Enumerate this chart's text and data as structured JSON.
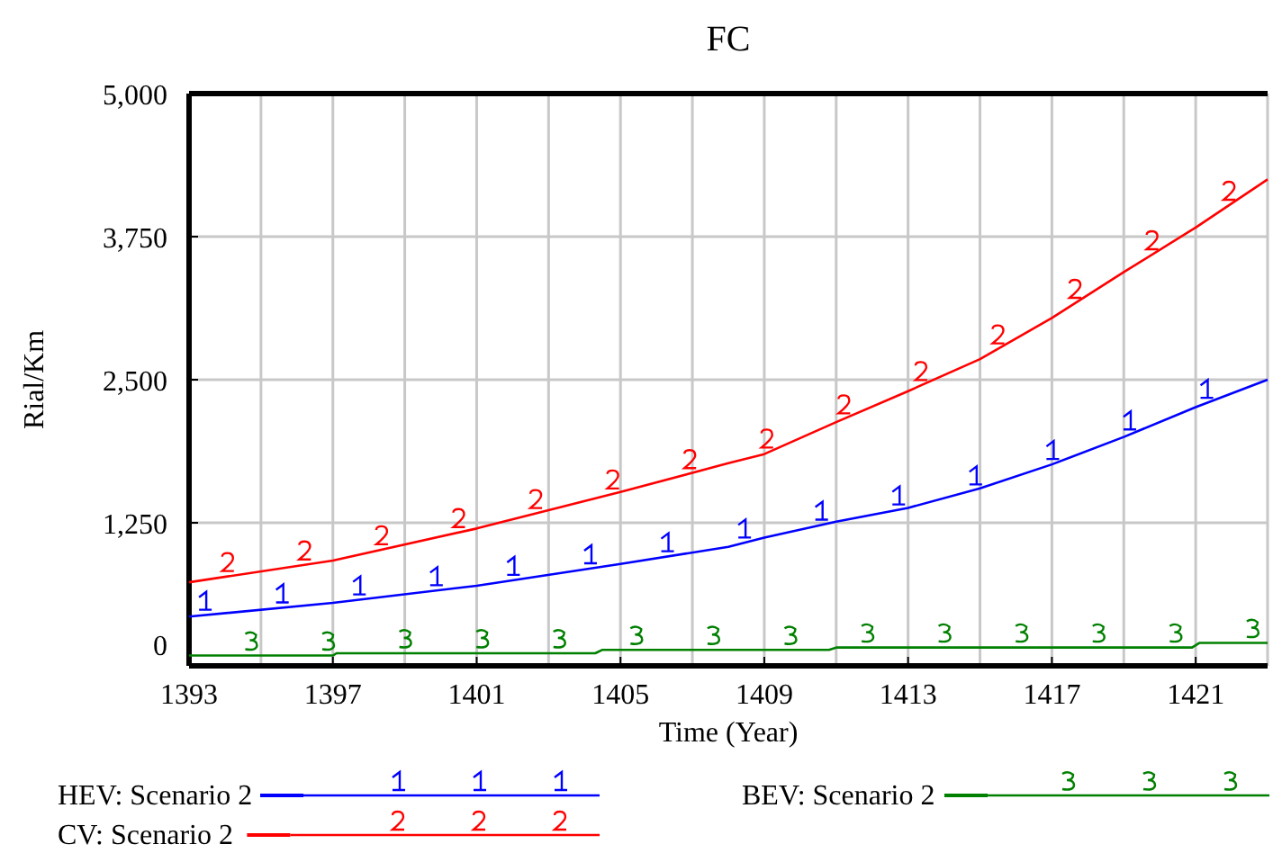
{
  "chart_data": {
    "type": "line",
    "title": "FC",
    "xlabel": "Time (Year)",
    "ylabel": "Rial/Km",
    "xlim": [
      1393,
      1423
    ],
    "xticks": [
      1393,
      1397,
      1401,
      1405,
      1409,
      1413,
      1417,
      1421
    ],
    "ylim": [
      0,
      5000
    ],
    "yticks": [
      {
        "value": 0,
        "label": "0"
      },
      {
        "value": 1250,
        "label": "1,250"
      },
      {
        "value": 2500,
        "label": "2,500"
      },
      {
        "value": 3750,
        "label": "3,750"
      },
      {
        "value": 5000,
        "label": "5,000"
      }
    ],
    "grid": true,
    "legend": "bottom",
    "series": [
      {
        "name": "HEV: Scenario 2",
        "color": "#0000ff",
        "x": [
          1393,
          1397,
          1401,
          1405,
          1408,
          1409,
          1411,
          1413,
          1415,
          1417,
          1419,
          1421,
          1423
        ],
        "values": [
          430,
          550,
          700,
          890,
          1040,
          1120,
          1260,
          1380,
          1550,
          1760,
          2000,
          2260,
          2500
        ]
      },
      {
        "name": "CV: Scenario 2",
        "color": "#ff0000",
        "x": [
          1393,
          1397,
          1401,
          1405,
          1408,
          1409,
          1411,
          1413,
          1415,
          1417,
          1419,
          1421,
          1423
        ],
        "values": [
          730,
          920,
          1200,
          1520,
          1770,
          1850,
          2130,
          2400,
          2680,
          3040,
          3440,
          3830,
          4250
        ]
      },
      {
        "name": "BEV: Scenario 2",
        "color": "#008000",
        "x": [
          1393,
          1397,
          1397.1,
          1404.3,
          1404.5,
          1410.8,
          1411,
          1420.9,
          1421.1,
          1423
        ],
        "values": [
          90,
          90,
          110,
          110,
          140,
          140,
          160,
          160,
          200,
          200
        ]
      }
    ]
  }
}
